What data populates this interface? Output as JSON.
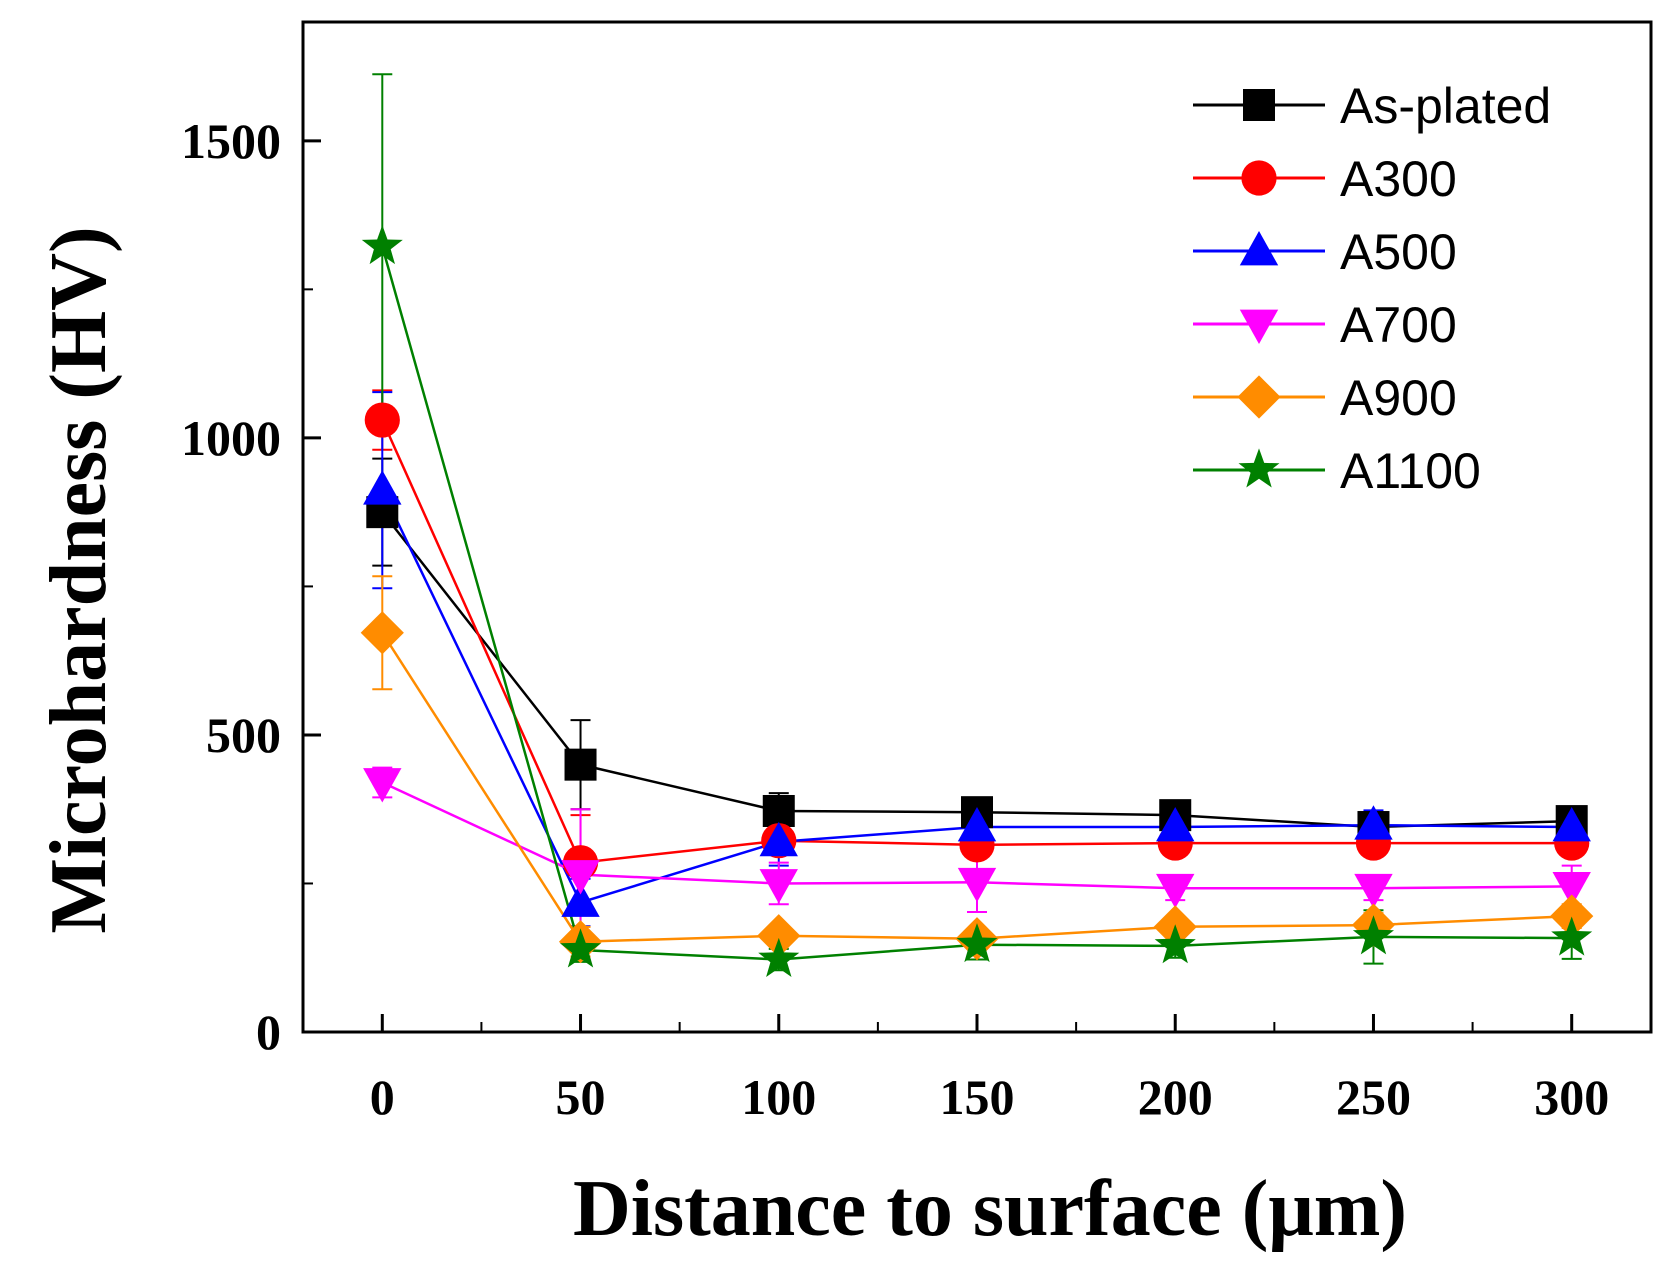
{
  "chart_data": {
    "type": "line",
    "title": "",
    "xlabel": "Distance to surface (μm)",
    "ylabel": "Microhardness (HV)",
    "xlim": [
      -20,
      320
    ],
    "ylim": [
      0,
      1700
    ],
    "xticks": [
      0,
      50,
      100,
      150,
      200,
      250,
      300
    ],
    "yticks": [
      0,
      500,
      1000,
      1500
    ],
    "x": [
      0,
      50,
      100,
      150,
      200,
      250,
      300
    ],
    "legend_position": "top-right",
    "series": [
      {
        "name": "As-plated",
        "color": "#000000",
        "marker": "square",
        "values": [
          875,
          450,
          372,
          370,
          365,
          345,
          355
        ],
        "errors": [
          90,
          75,
          30,
          15,
          12,
          10,
          12
        ]
      },
      {
        "name": "A300",
        "color": "#ff0000",
        "marker": "circle",
        "values": [
          1030,
          285,
          322,
          315,
          318,
          318,
          318
        ],
        "errors": [
          50,
          80,
          20,
          15,
          12,
          12,
          12
        ]
      },
      {
        "name": "A500",
        "color": "#0000ff",
        "marker": "triangle-up",
        "values": [
          912,
          218,
          320,
          345,
          345,
          348,
          345
        ],
        "errors": [
          165,
          40,
          40,
          15,
          12,
          25,
          12
        ]
      },
      {
        "name": "A700",
        "color": "#ff00ff",
        "marker": "triangle-down",
        "values": [
          420,
          265,
          250,
          252,
          242,
          242,
          245
        ],
        "errors": [
          25,
          110,
          35,
          50,
          20,
          20,
          35
        ]
      },
      {
        "name": "A900",
        "color": "#ff8c00",
        "marker": "diamond",
        "values": [
          672,
          152,
          162,
          157,
          177,
          180,
          195
        ],
        "errors": [
          95,
          25,
          15,
          15,
          15,
          20,
          20
        ]
      },
      {
        "name": "A1100",
        "color": "#008000",
        "marker": "star",
        "values": [
          1322,
          138,
          122,
          147,
          145,
          160,
          158
        ],
        "errors": [
          290,
          20,
          18,
          25,
          20,
          45,
          35
        ]
      }
    ]
  }
}
